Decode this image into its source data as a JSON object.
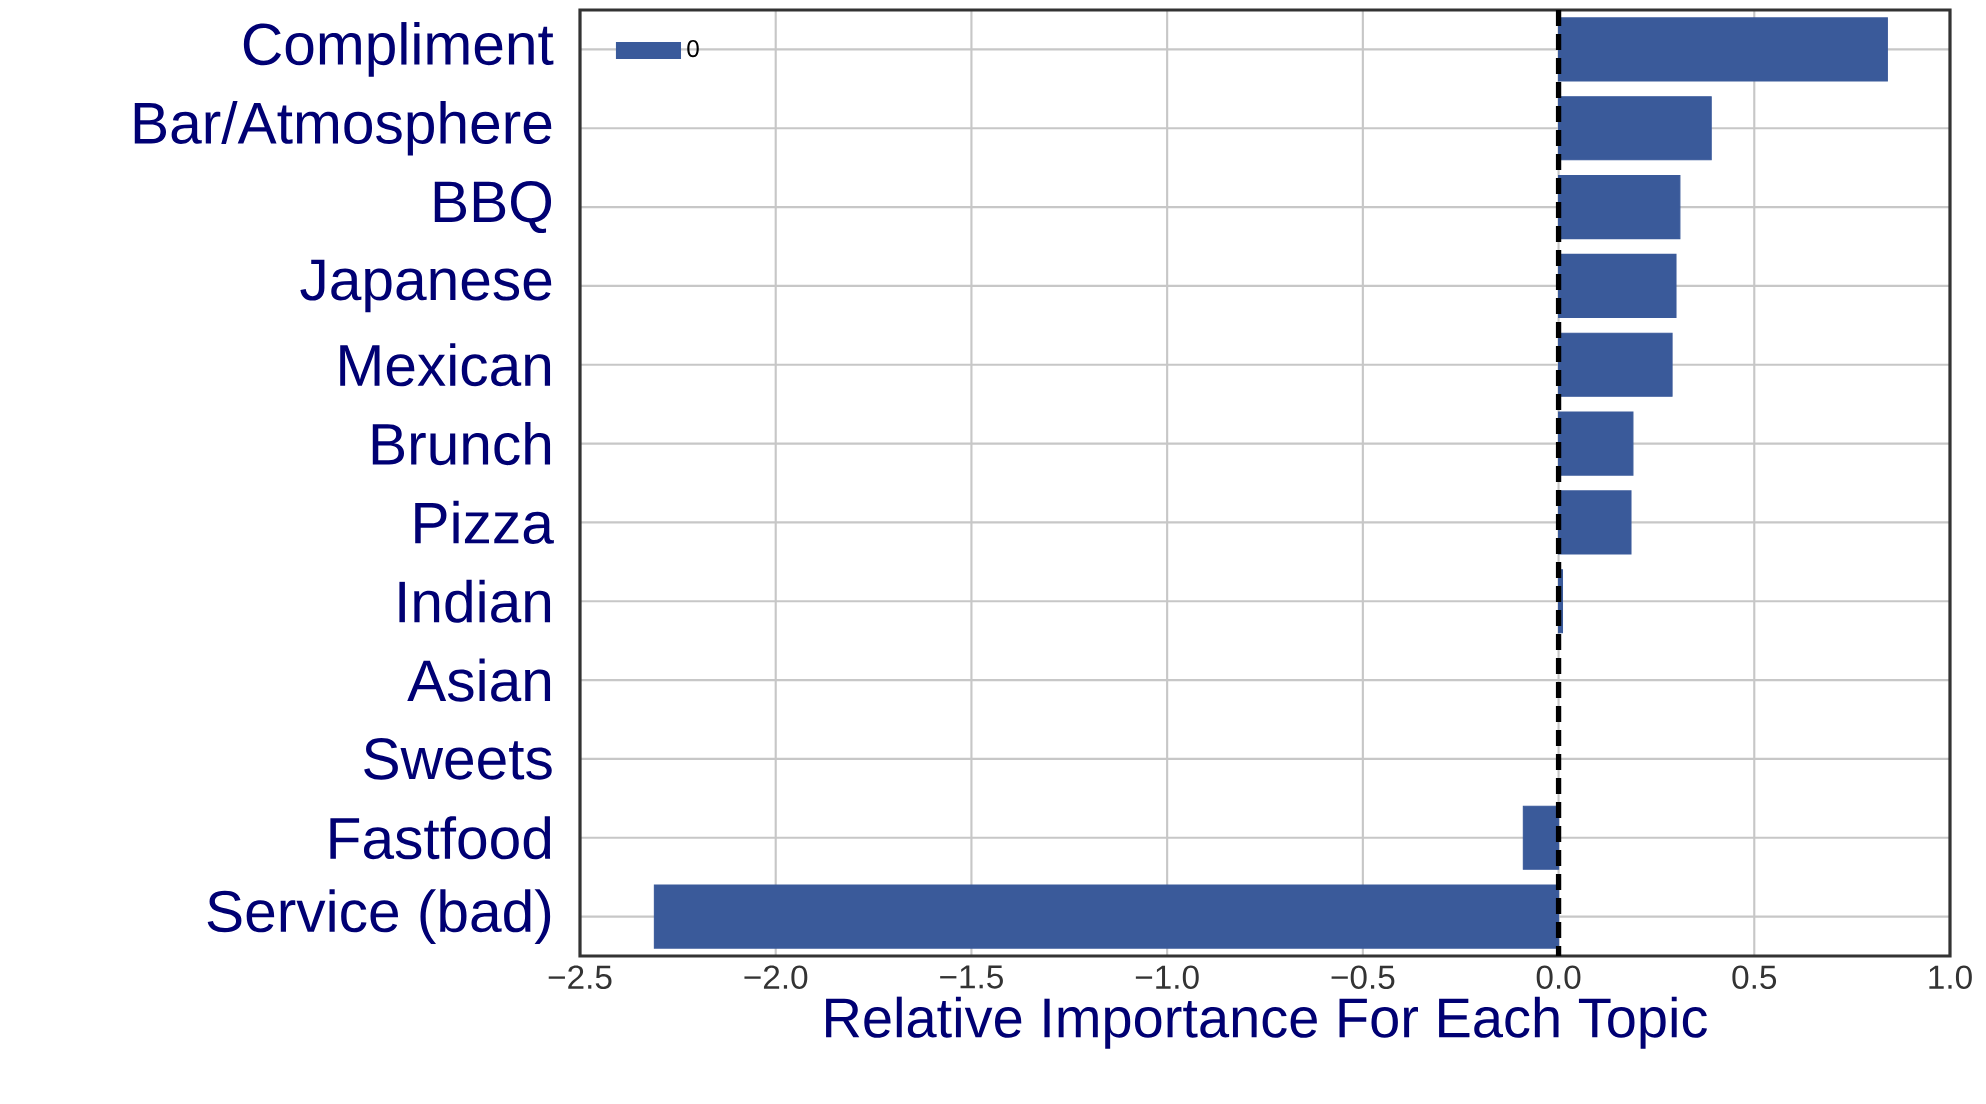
{
  "chart_data": {
    "type": "bar",
    "orientation": "horizontal",
    "xlabel": "Relative Importance For Each Topic",
    "categories": [
      "Compliment",
      "Bar/Atmosphere",
      "BBQ",
      "Japanese",
      "Mexican",
      "Brunch",
      "Pizza",
      "Indian",
      "Asian",
      "Sweets",
      "Fastfood",
      "Service (bad)"
    ],
    "series": [
      {
        "name": "0",
        "color": "#3a5a9a",
        "values": [
          0.84,
          0.39,
          0.31,
          0.3,
          0.29,
          0.19,
          0.185,
          0.01,
          null,
          null,
          -0.09,
          -2.31
        ]
      }
    ],
    "xlim": [
      -2.5,
      1.0
    ],
    "xticks": [
      {
        "value": -2.5,
        "label": "−2.5"
      },
      {
        "value": -2.0,
        "label": "−2.0"
      },
      {
        "value": -1.5,
        "label": "−1.5"
      },
      {
        "value": -1.0,
        "label": "−1.0"
      },
      {
        "value": -0.5,
        "label": "−0.5"
      },
      {
        "value": 0.0,
        "label": "0.0"
      },
      {
        "value": 0.5,
        "label": "0.5"
      },
      {
        "value": 1.0,
        "label": "1.0"
      }
    ],
    "ref_lines": [
      {
        "axis": "x",
        "value": 0,
        "color": "#000000",
        "line_style": "dashed"
      }
    ],
    "grid": true,
    "legend": "top left"
  }
}
